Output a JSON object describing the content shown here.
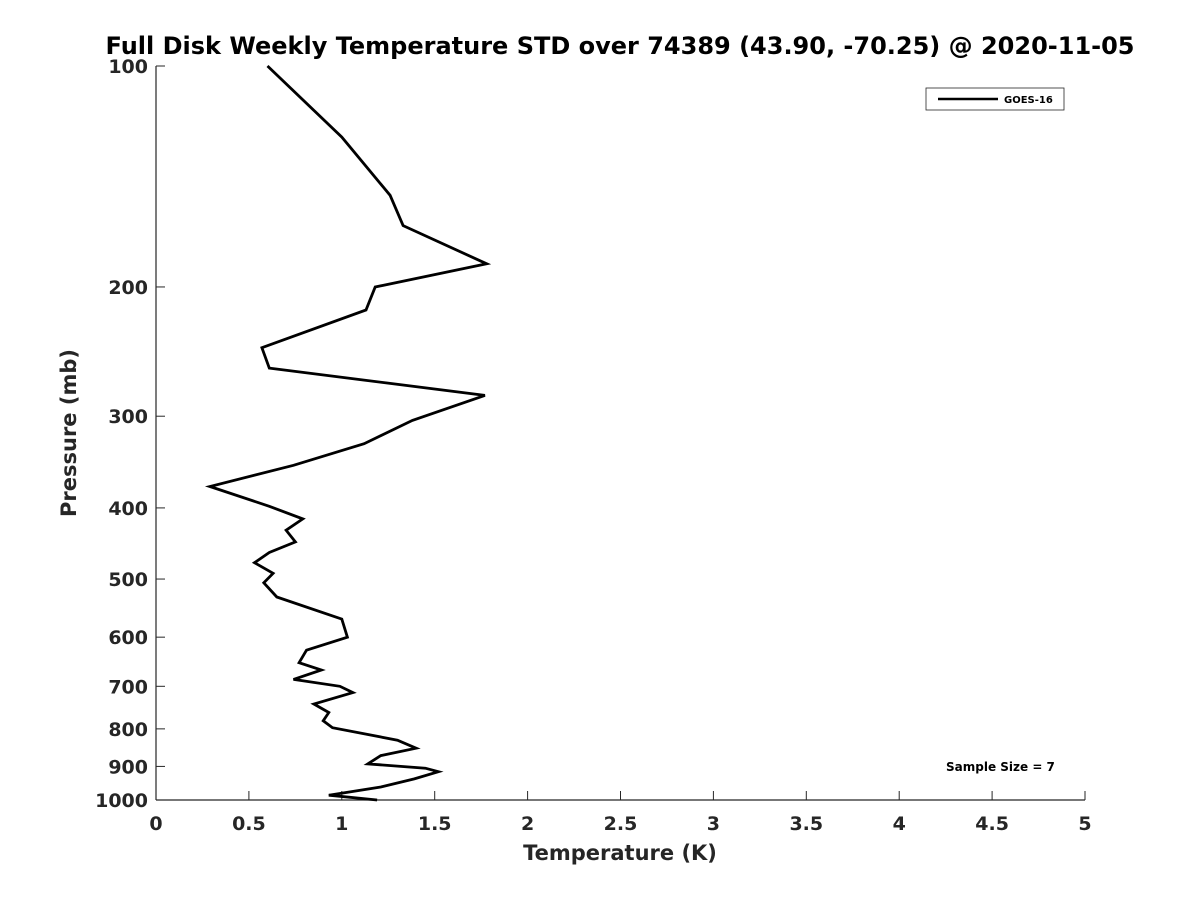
{
  "chart_data": {
    "type": "line",
    "title": "Full Disk Weekly Temperature STD over 74389 (43.90, -70.25) @ 2020-11-05",
    "xlabel": "Temperature (K)",
    "ylabel": "Pressure (mb)",
    "xlim": [
      0,
      5
    ],
    "ylim": [
      100,
      1000
    ],
    "y_scale": "log",
    "y_reversed": true,
    "xticks": [
      "0",
      "0.5",
      "1",
      "1.5",
      "2",
      "2.5",
      "3",
      "3.5",
      "4",
      "4.5",
      "5"
    ],
    "yticks": [
      "100",
      "200",
      "300",
      "400",
      "500",
      "600",
      "700",
      "800",
      "900",
      "1000"
    ],
    "legend": {
      "placement": "top-right"
    },
    "annotation": "Sample Size = 7",
    "series": [
      {
        "name": "GOES-16",
        "color": "#000000",
        "points": [
          [
            0.6,
            100
          ],
          [
            1.0,
            125
          ],
          [
            1.26,
            150
          ],
          [
            1.33,
            165
          ],
          [
            1.78,
            186
          ],
          [
            1.18,
            200
          ],
          [
            1.13,
            215
          ],
          [
            0.57,
            242
          ],
          [
            0.61,
            258
          ],
          [
            1.77,
            281
          ],
          [
            1.38,
            304
          ],
          [
            1.12,
            327
          ],
          [
            0.74,
            350
          ],
          [
            0.29,
            374
          ],
          [
            0.61,
            398
          ],
          [
            0.79,
            414
          ],
          [
            0.7,
            429
          ],
          [
            0.75,
            445
          ],
          [
            0.61,
            460
          ],
          [
            0.53,
            475
          ],
          [
            0.63,
            491
          ],
          [
            0.58,
            506
          ],
          [
            0.65,
            529
          ],
          [
            1.0,
            567
          ],
          [
            1.03,
            600
          ],
          [
            0.81,
            625
          ],
          [
            0.77,
            650
          ],
          [
            0.89,
            665
          ],
          [
            0.74,
            685
          ],
          [
            0.99,
            700
          ],
          [
            1.06,
            714
          ],
          [
            0.85,
            740
          ],
          [
            0.93,
            760
          ],
          [
            0.9,
            780
          ],
          [
            0.95,
            797
          ],
          [
            1.3,
            829
          ],
          [
            1.4,
            850
          ],
          [
            1.21,
            870
          ],
          [
            1.14,
            893
          ],
          [
            1.45,
            905
          ],
          [
            1.52,
            915
          ],
          [
            1.39,
            936
          ],
          [
            1.21,
            960
          ],
          [
            0.93,
            985
          ],
          [
            1.19,
            1000
          ]
        ]
      }
    ]
  }
}
